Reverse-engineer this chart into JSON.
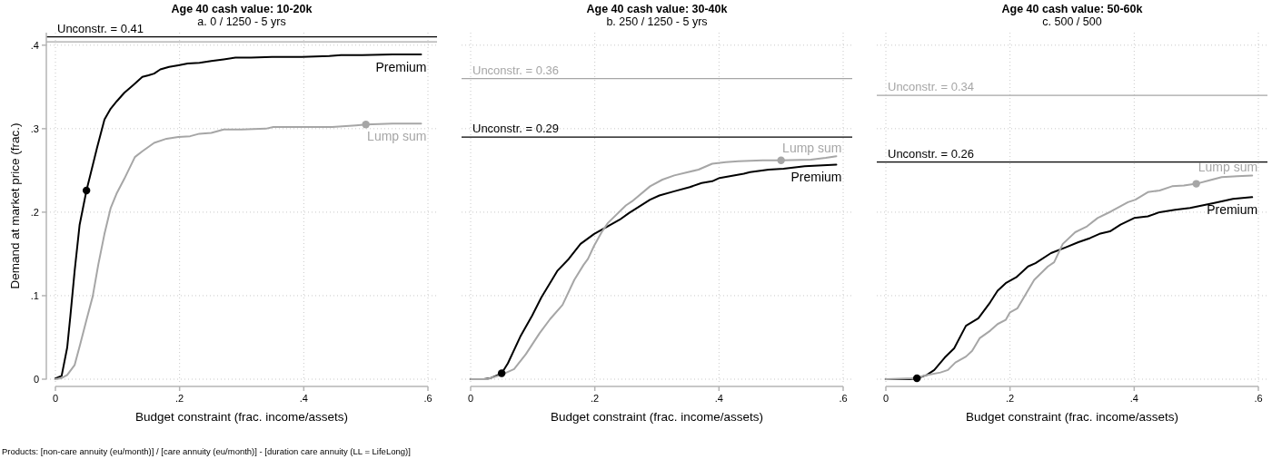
{
  "chart_data": [
    {
      "type": "line",
      "title": "Age 40 cash value: 10-20k",
      "subtitle": "a. 0 / 1250 - 5 yrs",
      "xlabel": "Budget constraint (frac. income/assets)",
      "ylabel": "Demand at market price (frac.)",
      "xlim": [
        0,
        0.6
      ],
      "xticks": [
        {
          "value": 0,
          "label": "0"
        },
        {
          "value": 0.2,
          "label": ".2"
        },
        {
          "value": 0.4,
          "label": ".4"
        },
        {
          "value": 0.6,
          "label": ".6"
        }
      ],
      "ylim": [
        0,
        0.415
      ],
      "yticks": [
        {
          "value": 0,
          "label": "0"
        },
        {
          "value": 0.1,
          "label": ".1"
        },
        {
          "value": 0.2,
          "label": ".2"
        },
        {
          "value": 0.3,
          "label": ".3"
        },
        {
          "value": 0.4,
          "label": ".4"
        }
      ],
      "grid": true,
      "series": [
        {
          "name": "Premium",
          "color": "#000000",
          "x": [
            0,
            0.01,
            0.019,
            0.024,
            0.031,
            0.039,
            0.05,
            0.057,
            0.067,
            0.079,
            0.089,
            0.099,
            0.111,
            0.125,
            0.14,
            0.15,
            0.159,
            0.169,
            0.183,
            0.198,
            0.213,
            0.232,
            0.251,
            0.271,
            0.29,
            0.315,
            0.349,
            0.397,
            0.441,
            0.46,
            0.494,
            0.543,
            0.589
          ],
          "values": [
            0.001,
            0.004,
            0.038,
            0.075,
            0.13,
            0.185,
            0.226,
            0.247,
            0.277,
            0.311,
            0.324,
            0.333,
            0.343,
            0.352,
            0.362,
            0.364,
            0.366,
            0.371,
            0.374,
            0.376,
            0.378,
            0.379,
            0.381,
            0.383,
            0.385,
            0.385,
            0.386,
            0.386,
            0.387,
            0.388,
            0.388,
            0.389,
            0.389
          ]
        },
        {
          "name": "Lump sum",
          "color": "#a6a6a6",
          "x": [
            0,
            0.009,
            0.019,
            0.031,
            0.04,
            0.05,
            0.06,
            0.069,
            0.079,
            0.089,
            0.099,
            0.111,
            0.128,
            0.14,
            0.159,
            0.179,
            0.198,
            0.217,
            0.232,
            0.251,
            0.271,
            0.3,
            0.339,
            0.351,
            0.397,
            0.446,
            0.484,
            0.5,
            0.543,
            0.589
          ],
          "values": [
            0,
            0.001,
            0.005,
            0.017,
            0.042,
            0.071,
            0.099,
            0.137,
            0.174,
            0.205,
            0.223,
            0.24,
            0.266,
            0.273,
            0.283,
            0.288,
            0.29,
            0.291,
            0.294,
            0.295,
            0.299,
            0.299,
            0.3,
            0.302,
            0.302,
            0.302,
            0.304,
            0.305,
            0.306,
            0.306
          ]
        },
        {
          "type": "scatter",
          "color": "#000000",
          "marker": "circle",
          "x": [
            0.05
          ],
          "values": [
            0.226
          ]
        },
        {
          "type": "scatter",
          "color": "#a6a6a6",
          "marker": "circle",
          "x": [
            0.5
          ],
          "values": [
            0.305
          ]
        }
      ],
      "ref_lines": [
        {
          "axis": "y",
          "value": 0.41,
          "label": "Unconstr. = 0.41",
          "color": "#000000"
        },
        {
          "axis": "y",
          "value": 0.404,
          "color": "#a6a6a6"
        }
      ],
      "annotations": [
        "Products: [non-care annuity (eu/month)] / [care annuity (eu/month)] - [duration care annuity (LL = LifeLong)]"
      ]
    },
    {
      "type": "line",
      "title": "Age 40 cash value: 30-40k",
      "subtitle": "b. 250 / 1250 - 5 yrs",
      "xlabel": "Budget constraint (frac. income/assets)",
      "xlim": [
        0,
        0.6
      ],
      "xticks": [
        {
          "value": 0,
          "label": "0"
        },
        {
          "value": 0.2,
          "label": ".2"
        },
        {
          "value": 0.4,
          "label": ".4"
        },
        {
          "value": 0.6,
          "label": ".6"
        }
      ],
      "ylim": [
        0,
        0.415
      ],
      "yticks": [
        0,
        0.1,
        0.2,
        0.3,
        0.4
      ],
      "grid": true,
      "tick_labels": "x",
      "series": [
        {
          "name": "Premium",
          "color": "#000000",
          "x": [
            0,
            0.021,
            0.031,
            0.05,
            0.06,
            0.08,
            0.099,
            0.114,
            0.131,
            0.14,
            0.158,
            0.177,
            0.199,
            0.216,
            0.24,
            0.255,
            0.289,
            0.304,
            0.328,
            0.353,
            0.372,
            0.389,
            0.401,
            0.44,
            0.45,
            0.48,
            0.504,
            0.538,
            0.589
          ],
          "values": [
            0,
            0,
            0.001,
            0.007,
            0.019,
            0.051,
            0.076,
            0.098,
            0.119,
            0.13,
            0.144,
            0.162,
            0.174,
            0.181,
            0.191,
            0.199,
            0.215,
            0.22,
            0.225,
            0.23,
            0.235,
            0.237,
            0.241,
            0.246,
            0.248,
            0.251,
            0.252,
            0.255,
            0.257
          ]
        },
        {
          "name": "Lump sum",
          "color": "#a6a6a6",
          "x": [
            0,
            0.026,
            0.049,
            0.07,
            0.089,
            0.111,
            0.128,
            0.148,
            0.167,
            0.182,
            0.189,
            0.199,
            0.211,
            0.221,
            0.25,
            0.26,
            0.289,
            0.309,
            0.328,
            0.367,
            0.389,
            0.411,
            0.431,
            0.47,
            0.5,
            0.548,
            0.572,
            0.589
          ],
          "values": [
            0,
            0,
            0.005,
            0.012,
            0.03,
            0.055,
            0.072,
            0.089,
            0.119,
            0.137,
            0.144,
            0.16,
            0.176,
            0.187,
            0.208,
            0.213,
            0.231,
            0.239,
            0.244,
            0.251,
            0.258,
            0.26,
            0.261,
            0.262,
            0.262,
            0.263,
            0.265,
            0.267
          ]
        },
        {
          "type": "scatter",
          "color": "#000000",
          "marker": "circle",
          "x": [
            0.05
          ],
          "values": [
            0.007
          ]
        },
        {
          "type": "scatter",
          "color": "#a6a6a6",
          "marker": "circle",
          "x": [
            0.5
          ],
          "values": [
            0.262
          ]
        }
      ],
      "ref_lines": [
        {
          "axis": "y",
          "value": 0.36,
          "label": "Unconstr. = 0.36",
          "color": "#a6a6a6"
        },
        {
          "axis": "y",
          "value": 0.29,
          "label": "Unconstr. = 0.29",
          "color": "#000000"
        }
      ]
    },
    {
      "type": "line",
      "title": "Age 40 cash value: 50-60k",
      "subtitle": "c. 500 / 500",
      "xlabel": "Budget constraint (frac. income/assets)",
      "xlim": [
        0,
        0.6
      ],
      "xticks": [
        {
          "value": 0,
          "label": "0"
        },
        {
          "value": 0.2,
          "label": ".2"
        },
        {
          "value": 0.4,
          "label": ".4"
        },
        {
          "value": 0.6,
          "label": ".6"
        }
      ],
      "ylim": [
        0,
        0.415
      ],
      "yticks": [
        0,
        0.1,
        0.2,
        0.3,
        0.4
      ],
      "grid": true,
      "tick_labels": "x",
      "series": [
        {
          "name": "Premium",
          "color": "#000000",
          "x": [
            0,
            0.039,
            0.05,
            0.066,
            0.078,
            0.095,
            0.11,
            0.129,
            0.149,
            0.168,
            0.18,
            0.193,
            0.21,
            0.229,
            0.241,
            0.266,
            0.29,
            0.31,
            0.329,
            0.344,
            0.361,
            0.378,
            0.4,
            0.422,
            0.441,
            0.466,
            0.49,
            0.529,
            0.559,
            0.59
          ],
          "values": [
            0,
            0,
            0.001,
            0.005,
            0.011,
            0.026,
            0.037,
            0.064,
            0.073,
            0.092,
            0.106,
            0.115,
            0.122,
            0.135,
            0.139,
            0.151,
            0.158,
            0.164,
            0.169,
            0.174,
            0.177,
            0.185,
            0.193,
            0.195,
            0.2,
            0.203,
            0.205,
            0.211,
            0.216,
            0.218
          ]
        },
        {
          "name": "Lump sum",
          "color": "#a6a6a6",
          "x": [
            0,
            0.046,
            0.066,
            0.088,
            0.1,
            0.112,
            0.129,
            0.139,
            0.151,
            0.168,
            0.18,
            0.193,
            0.2,
            0.212,
            0.239,
            0.261,
            0.271,
            0.285,
            0.305,
            0.324,
            0.341,
            0.363,
            0.39,
            0.402,
            0.422,
            0.441,
            0.461,
            0.48,
            0.5,
            0.52,
            0.541,
            0.566,
            0.59
          ],
          "values": [
            0,
            0.001,
            0.005,
            0.008,
            0.011,
            0.02,
            0.027,
            0.034,
            0.049,
            0.058,
            0.066,
            0.071,
            0.08,
            0.085,
            0.119,
            0.135,
            0.14,
            0.162,
            0.176,
            0.183,
            0.193,
            0.201,
            0.212,
            0.215,
            0.224,
            0.226,
            0.231,
            0.232,
            0.234,
            0.238,
            0.242,
            0.243,
            0.244
          ]
        },
        {
          "type": "scatter",
          "color": "#000000",
          "marker": "circle",
          "x": [
            0.05
          ],
          "values": [
            0.001
          ]
        },
        {
          "type": "scatter",
          "color": "#a6a6a6",
          "marker": "circle",
          "x": [
            0.5
          ],
          "values": [
            0.234
          ]
        }
      ],
      "ref_lines": [
        {
          "axis": "y",
          "value": 0.34,
          "label": "Unconstr. = 0.34",
          "color": "#a6a6a6"
        },
        {
          "axis": "y",
          "value": 0.26,
          "label": "Unconstr. = 0.26",
          "color": "#000000"
        }
      ]
    }
  ]
}
